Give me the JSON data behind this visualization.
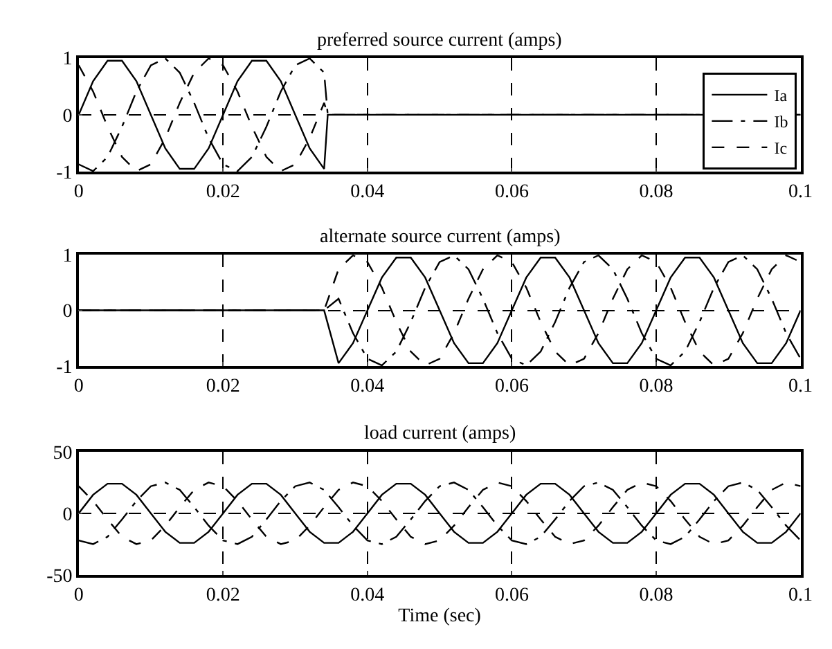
{
  "chart_data": [
    {
      "type": "line",
      "title": "preferred source current (amps)",
      "xlim": [
        0,
        0.1
      ],
      "xticks": [
        0,
        0.02,
        0.04,
        0.06,
        0.08,
        0.1
      ],
      "ylim": [
        -1,
        1
      ],
      "yticks": [
        -1,
        0,
        1
      ],
      "grid": true,
      "legend": "bottom right",
      "series": [
        {
          "name": "Ia",
          "color": "#000000",
          "line_style": "solid",
          "x": [
            0,
            0.002,
            0.004,
            0.006,
            0.008,
            0.01,
            0.012,
            0.014,
            0.016,
            0.018,
            0.02,
            0.022,
            0.024,
            0.026,
            0.028,
            0.03,
            0.032,
            0.034,
            0.0345,
            0.1
          ],
          "values": [
            0,
            0.59,
            0.95,
            0.95,
            0.59,
            0,
            -0.59,
            -0.95,
            -0.95,
            -0.59,
            0,
            0.59,
            0.95,
            0.95,
            0.59,
            0,
            -0.59,
            -0.95,
            0,
            0
          ]
        },
        {
          "name": "Ib",
          "color": "#000000",
          "line_style": "dashdot",
          "x": [
            0,
            0.002,
            0.004,
            0.006,
            0.008,
            0.01,
            0.012,
            0.014,
            0.016,
            0.018,
            0.02,
            0.022,
            0.024,
            0.026,
            0.028,
            0.03,
            0.032,
            0.034,
            0.0345,
            0.1
          ],
          "values": [
            -0.87,
            -0.99,
            -0.74,
            -0.21,
            0.41,
            0.87,
            0.99,
            0.74,
            0.21,
            -0.41,
            -0.87,
            -0.99,
            -0.74,
            -0.21,
            0.41,
            0.87,
            0.99,
            0.74,
            0,
            0
          ]
        },
        {
          "name": "Ic",
          "color": "#000000",
          "line_style": "dashed",
          "x": [
            0,
            0.002,
            0.004,
            0.006,
            0.008,
            0.01,
            0.012,
            0.014,
            0.016,
            0.018,
            0.02,
            0.022,
            0.024,
            0.026,
            0.028,
            0.03,
            0.032,
            0.034,
            0.0345,
            0.1
          ],
          "values": [
            0.87,
            0.41,
            -0.21,
            -0.74,
            -0.99,
            -0.87,
            -0.41,
            0.21,
            0.74,
            0.99,
            0.87,
            0.41,
            -0.21,
            -0.74,
            -0.99,
            -0.87,
            -0.41,
            0.21,
            0,
            0
          ]
        }
      ]
    },
    {
      "type": "line",
      "title": "alternate source current (amps)",
      "xlim": [
        0,
        0.1
      ],
      "xticks": [
        0,
        0.02,
        0.04,
        0.06,
        0.08,
        0.1
      ],
      "ylim": [
        -1,
        1
      ],
      "yticks": [
        -1,
        0,
        1
      ],
      "grid": true,
      "x": [
        0,
        0.034,
        0.036,
        0.038,
        0.04,
        0.042,
        0.044,
        0.046,
        0.048,
        0.05,
        0.052,
        0.054,
        0.056,
        0.058,
        0.06,
        0.062,
        0.064,
        0.066,
        0.068,
        0.07,
        0.072,
        0.074,
        0.076,
        0.078,
        0.08,
        0.082,
        0.084,
        0.086,
        0.088,
        0.09,
        0.092,
        0.094,
        0.096,
        0.098,
        0.1
      ],
      "series": [
        {
          "color": "#000000",
          "line_style": "solid",
          "values": [
            0,
            0,
            -0.95,
            -0.59,
            0,
            0.59,
            0.95,
            0.95,
            0.59,
            0,
            -0.59,
            -0.95,
            -0.95,
            -0.59,
            0,
            0.59,
            0.95,
            0.95,
            0.59,
            0,
            -0.59,
            -0.95,
            -0.95,
            -0.59,
            0,
            0.59,
            0.95,
            0.95,
            0.59,
            0,
            -0.59,
            -0.95,
            -0.95,
            -0.59,
            0
          ]
        },
        {
          "color": "#000000",
          "line_style": "dashdot",
          "values": [
            0,
            0,
            0.21,
            -0.41,
            -0.87,
            -0.99,
            -0.74,
            -0.21,
            0.41,
            0.87,
            0.99,
            0.74,
            0.21,
            -0.41,
            -0.87,
            -0.99,
            -0.74,
            -0.21,
            0.41,
            0.87,
            0.99,
            0.74,
            0.21,
            -0.41,
            -0.87,
            -0.99,
            -0.74,
            -0.21,
            0.41,
            0.87,
            0.99,
            0.74,
            0.21,
            -0.41,
            -0.87
          ]
        },
        {
          "color": "#000000",
          "line_style": "dashed",
          "values": [
            0,
            0,
            0.74,
            0.99,
            0.87,
            0.41,
            -0.21,
            -0.74,
            -0.99,
            -0.87,
            -0.41,
            0.21,
            0.74,
            0.99,
            0.87,
            0.41,
            -0.21,
            -0.74,
            -0.99,
            -0.87,
            -0.41,
            0.21,
            0.74,
            0.99,
            0.87,
            0.41,
            -0.21,
            -0.74,
            -0.99,
            -0.87,
            -0.41,
            0.21,
            0.74,
            0.99,
            0.87
          ]
        }
      ]
    },
    {
      "type": "line",
      "title": "load current (amps)",
      "xlabel": "Time (sec)",
      "xlim": [
        0,
        0.1
      ],
      "xticks": [
        0,
        0.02,
        0.04,
        0.06,
        0.08,
        0.1
      ],
      "ylim": [
        -50,
        50
      ],
      "yticks": [
        -50,
        0,
        50
      ],
      "grid": true,
      "x": [
        0,
        0.002,
        0.004,
        0.006,
        0.008,
        0.01,
        0.012,
        0.014,
        0.016,
        0.018,
        0.02,
        0.022,
        0.024,
        0.026,
        0.028,
        0.03,
        0.032,
        0.034,
        0.036,
        0.038,
        0.04,
        0.042,
        0.044,
        0.046,
        0.048,
        0.05,
        0.052,
        0.054,
        0.056,
        0.058,
        0.06,
        0.062,
        0.064,
        0.066,
        0.068,
        0.07,
        0.072,
        0.074,
        0.076,
        0.078,
        0.08,
        0.082,
        0.084,
        0.086,
        0.088,
        0.09,
        0.092,
        0.094,
        0.096,
        0.098,
        0.1
      ],
      "series": [
        {
          "color": "#000000",
          "line_style": "solid",
          "values": [
            0,
            15,
            24,
            24,
            15,
            0,
            -15,
            -24,
            -24,
            -15,
            0,
            15,
            24,
            24,
            15,
            0,
            -15,
            -24,
            -24,
            -15,
            0,
            15,
            24,
            24,
            15,
            0,
            -15,
            -24,
            -24,
            -15,
            0,
            15,
            24,
            24,
            15,
            0,
            -15,
            -24,
            -24,
            -15,
            0,
            15,
            24,
            24,
            15,
            0,
            -15,
            -24,
            -24,
            -15,
            0
          ]
        },
        {
          "color": "#000000",
          "line_style": "dashdot",
          "values": [
            -22,
            -25,
            -19,
            -5,
            10,
            22,
            25,
            19,
            5,
            -10,
            -22,
            -25,
            -19,
            -5,
            10,
            22,
            25,
            19,
            5,
            -10,
            -22,
            -25,
            -19,
            -5,
            10,
            22,
            25,
            19,
            5,
            -10,
            -22,
            -25,
            -19,
            -5,
            10,
            22,
            25,
            19,
            5,
            -10,
            -22,
            -25,
            -19,
            -5,
            10,
            22,
            25,
            19,
            5,
            -10,
            -22
          ]
        },
        {
          "color": "#000000",
          "line_style": "dashed",
          "values": [
            22,
            10,
            -5,
            -19,
            -25,
            -22,
            -10,
            5,
            19,
            25,
            22,
            10,
            -5,
            -19,
            -25,
            -22,
            -10,
            5,
            19,
            25,
            22,
            10,
            -5,
            -19,
            -25,
            -22,
            -10,
            5,
            19,
            25,
            22,
            10,
            -5,
            -19,
            -25,
            -22,
            -10,
            5,
            19,
            25,
            22,
            10,
            -5,
            -19,
            -25,
            -22,
            -10,
            5,
            19,
            25,
            22
          ]
        }
      ]
    }
  ]
}
